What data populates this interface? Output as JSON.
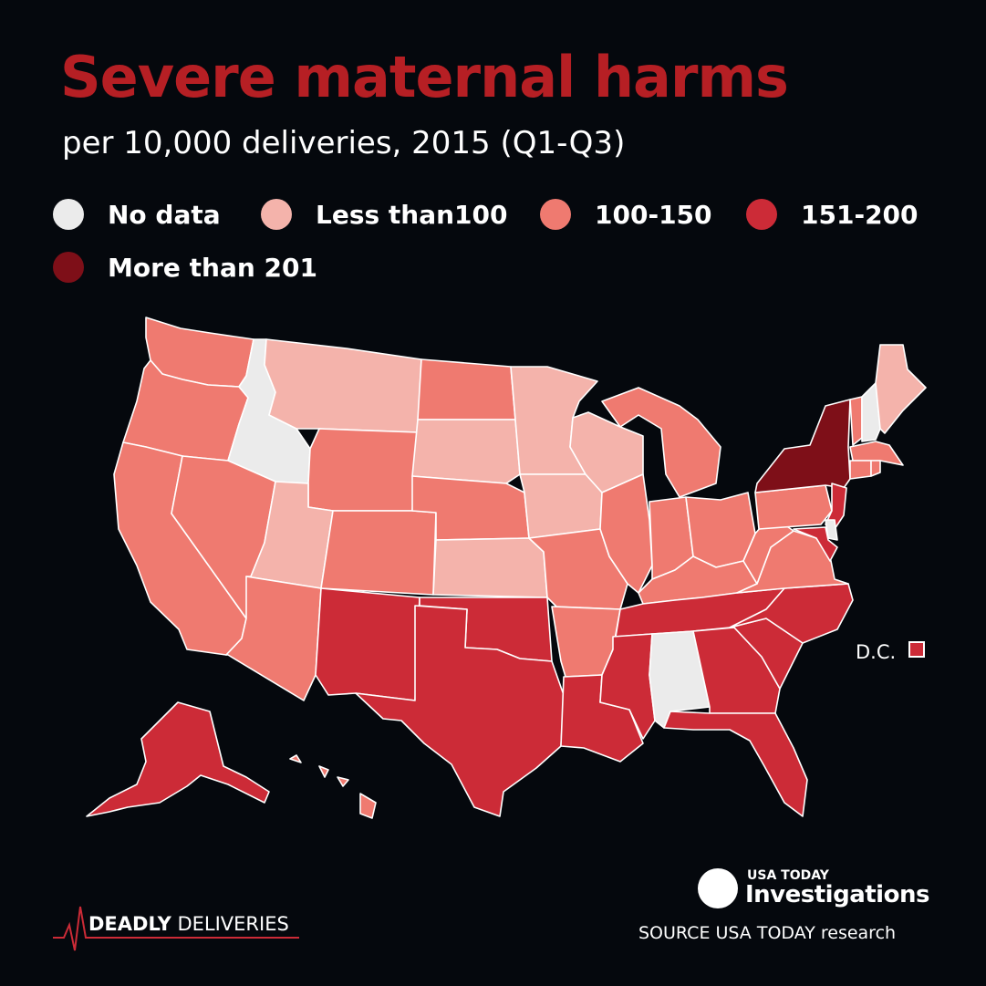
{
  "title": "Severe maternal harms",
  "subtitle": "per 10,000 deliveries, 2015 (Q1-Q3)",
  "legend": [
    {
      "label": "No data",
      "color": "#ebebeb"
    },
    {
      "label": "Less than100",
      "color": "#f4b3ab"
    },
    {
      "label": "100-150",
      "color": "#ef7a70"
    },
    {
      "label": "151-200",
      "color": "#cc2b37"
    },
    {
      "label": "More than 201",
      "color": "#7e0f18"
    }
  ],
  "states": {
    "WA": "100-150",
    "OR": "100-150",
    "CA": "100-150",
    "ID": "No data",
    "NV": "100-150",
    "MT": "Less than100",
    "WY": "100-150",
    "UT": "Less than100",
    "AZ": "100-150",
    "CO": "100-150",
    "NM": "151-200",
    "ND": "100-150",
    "SD": "Less than100",
    "NE": "100-150",
    "KS": "Less than100",
    "OK": "151-200",
    "TX": "151-200",
    "MN": "Less than100",
    "IA": "Less than100",
    "MO": "100-150",
    "AR": "100-150",
    "LA": "151-200",
    "WI": "Less than100",
    "IL": "100-150",
    "MI": "100-150",
    "IN": "100-150",
    "OH": "100-150",
    "KY": "100-150",
    "TN": "151-200",
    "MS": "151-200",
    "AL": "No data",
    "GA": "151-200",
    "FL": "151-200",
    "SC": "151-200",
    "NC": "151-200",
    "VA": "100-150",
    "WV": "100-150",
    "PA": "100-150",
    "NY": "More than 201",
    "VT": "100-150",
    "NH": "No data",
    "ME": "Less than100",
    "MA": "100-150",
    "RI": "100-150",
    "CT": "100-150",
    "NJ": "151-200",
    "DE": "No data",
    "MD": "151-200",
    "DC": "151-200",
    "AK": "151-200",
    "HI": "100-150"
  },
  "dc_label": "D.C.",
  "brand": {
    "top": "USA TODAY",
    "main": "Investigations"
  },
  "source": "SOURCE USA TODAY research",
  "series": {
    "strong": "DEADLY",
    "rest": "DELIVERIES"
  }
}
